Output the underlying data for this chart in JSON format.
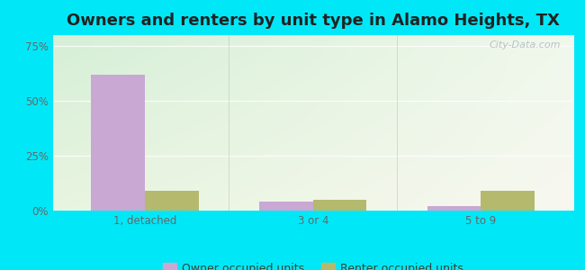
{
  "title": "Owners and renters by unit type in Alamo Heights, TX",
  "categories": [
    "1, detached",
    "3 or 4",
    "5 to 9"
  ],
  "owner_values": [
    62,
    4,
    2
  ],
  "renter_values": [
    9,
    5,
    9
  ],
  "owner_color": "#c9a8d4",
  "renter_color": "#b5b96e",
  "yticks": [
    0,
    25,
    50,
    75
  ],
  "ytick_labels": [
    "0%",
    "25%",
    "50%",
    "75%"
  ],
  "ylim": [
    0,
    80
  ],
  "bar_width": 0.32,
  "bg_color_topleft": "#d6efd6",
  "bg_color_center": "#f0f5e8",
  "bg_color_right": "#f5f5ef",
  "outer_background": "#00e8f8",
  "title_fontsize": 13,
  "tick_fontsize": 8.5,
  "legend_label_owner": "Owner occupied units",
  "legend_label_renter": "Renter occupied units",
  "watermark": "City-Data.com",
  "grid_color": "#e0e8d8",
  "tick_color": "#666666"
}
